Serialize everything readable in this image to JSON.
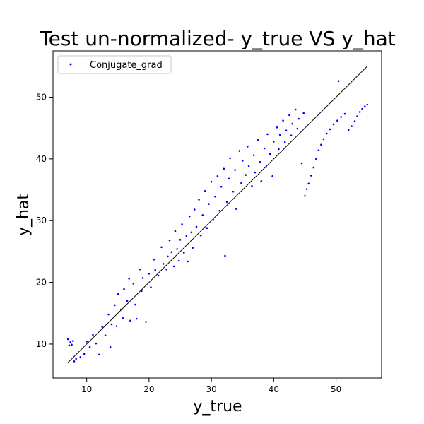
{
  "chart_data": {
    "type": "scatter",
    "title": "Test un-normalized- y_true VS y_hat",
    "xlabel": "y_true",
    "ylabel": "y_hat",
    "xlim": [
      4.6,
      57.3
    ],
    "ylim": [
      4.5,
      57.5
    ],
    "xticks": [
      "10",
      "20",
      "30",
      "40",
      "50"
    ],
    "yticks": [
      "10",
      "20",
      "30",
      "40",
      "50"
    ],
    "grid": false,
    "legend_position": "upper-left",
    "series": [
      {
        "name": "Conjugate_grad",
        "color": "#0000ff",
        "marker": "dot",
        "points": [
          [
            7.0,
            10.8
          ],
          [
            7.2,
            9.8
          ],
          [
            7.4,
            10.3
          ],
          [
            7.6,
            9.9
          ],
          [
            7.8,
            10.5
          ],
          [
            8.0,
            7.2
          ],
          [
            8.3,
            7.6
          ],
          [
            9.0,
            7.9
          ],
          [
            9.6,
            8.4
          ],
          [
            10.0,
            10.4
          ],
          [
            10.5,
            9.5
          ],
          [
            11.0,
            11.5
          ],
          [
            11.5,
            10.1
          ],
          [
            12.0,
            8.3
          ],
          [
            12.5,
            12.8
          ],
          [
            13.0,
            11.4
          ],
          [
            13.5,
            14.8
          ],
          [
            13.8,
            9.5
          ],
          [
            14.0,
            13.2
          ],
          [
            14.5,
            16.3
          ],
          [
            14.8,
            12.9
          ],
          [
            15.0,
            18.1
          ],
          [
            15.5,
            15.6
          ],
          [
            15.8,
            14.2
          ],
          [
            16.0,
            18.9
          ],
          [
            16.5,
            17.0
          ],
          [
            16.8,
            20.6
          ],
          [
            17.0,
            13.8
          ],
          [
            17.5,
            19.8
          ],
          [
            17.8,
            16.4
          ],
          [
            18.0,
            14.1
          ],
          [
            18.5,
            22.1
          ],
          [
            18.8,
            18.6
          ],
          [
            19.0,
            20.7
          ],
          [
            19.5,
            13.6
          ],
          [
            20.0,
            21.4
          ],
          [
            20.3,
            19.2
          ],
          [
            20.8,
            23.7
          ],
          [
            21.0,
            22.0
          ],
          [
            21.5,
            21.1
          ],
          [
            22.0,
            25.7
          ],
          [
            22.3,
            23.0
          ],
          [
            22.8,
            22.1
          ],
          [
            23.0,
            24.2
          ],
          [
            23.3,
            26.8
          ],
          [
            23.6,
            24.9
          ],
          [
            24.0,
            22.6
          ],
          [
            24.2,
            28.3
          ],
          [
            24.5,
            25.4
          ],
          [
            24.8,
            23.5
          ],
          [
            25.0,
            26.9
          ],
          [
            25.3,
            29.4
          ],
          [
            25.6,
            24.8
          ],
          [
            26.0,
            27.5
          ],
          [
            26.2,
            23.4
          ],
          [
            26.5,
            30.7
          ],
          [
            26.8,
            28.1
          ],
          [
            27.0,
            25.6
          ],
          [
            27.3,
            31.8
          ],
          [
            27.6,
            29.0
          ],
          [
            28.0,
            33.4
          ],
          [
            28.3,
            27.6
          ],
          [
            28.6,
            30.9
          ],
          [
            29.0,
            34.8
          ],
          [
            29.3,
            28.8
          ],
          [
            29.6,
            32.7
          ],
          [
            30.0,
            36.3
          ],
          [
            30.3,
            30.1
          ],
          [
            30.6,
            33.9
          ],
          [
            31.0,
            37.2
          ],
          [
            31.3,
            31.6
          ],
          [
            31.6,
            35.5
          ],
          [
            32.0,
            38.4
          ],
          [
            32.2,
            24.3
          ],
          [
            32.5,
            33.0
          ],
          [
            32.8,
            36.8
          ],
          [
            33.0,
            40.1
          ],
          [
            33.5,
            34.7
          ],
          [
            33.8,
            38.2
          ],
          [
            34.0,
            31.9
          ],
          [
            34.5,
            41.3
          ],
          [
            34.8,
            36.1
          ],
          [
            35.0,
            39.7
          ],
          [
            35.5,
            37.4
          ],
          [
            35.8,
            42.0
          ],
          [
            36.0,
            38.8
          ],
          [
            36.5,
            35.6
          ],
          [
            36.8,
            40.6
          ],
          [
            37.0,
            37.8
          ],
          [
            37.5,
            43.1
          ],
          [
            37.8,
            39.5
          ],
          [
            38.0,
            36.4
          ],
          [
            38.5,
            41.7
          ],
          [
            38.8,
            38.7
          ],
          [
            39.0,
            44.0
          ],
          [
            39.4,
            40.8
          ],
          [
            39.8,
            37.2
          ],
          [
            40.0,
            42.8
          ],
          [
            40.5,
            45.1
          ],
          [
            40.8,
            41.6
          ],
          [
            41.0,
            43.9
          ],
          [
            41.5,
            46.2
          ],
          [
            41.8,
            42.7
          ],
          [
            42.0,
            44.6
          ],
          [
            42.5,
            47.1
          ],
          [
            42.8,
            43.8
          ],
          [
            43.0,
            45.7
          ],
          [
            43.5,
            48.0
          ],
          [
            43.8,
            44.9
          ],
          [
            44.0,
            46.5
          ],
          [
            44.5,
            39.3
          ],
          [
            44.8,
            47.4
          ],
          [
            45.0,
            34.0
          ],
          [
            45.3,
            35.1
          ],
          [
            45.6,
            36.0
          ],
          [
            46.0,
            37.3
          ],
          [
            46.4,
            38.6
          ],
          [
            46.8,
            40.0
          ],
          [
            47.2,
            41.4
          ],
          [
            47.6,
            42.3
          ],
          [
            48.0,
            43.2
          ],
          [
            48.5,
            44.1
          ],
          [
            49.0,
            44.8
          ],
          [
            49.6,
            45.6
          ],
          [
            50.2,
            46.2
          ],
          [
            50.4,
            52.6
          ],
          [
            50.8,
            46.8
          ],
          [
            51.4,
            47.3
          ],
          [
            52.0,
            44.7
          ],
          [
            52.5,
            45.3
          ],
          [
            53.0,
            46.1
          ],
          [
            53.4,
            46.9
          ],
          [
            53.8,
            47.6
          ],
          [
            54.2,
            48.1
          ],
          [
            54.6,
            48.5
          ],
          [
            55.0,
            48.8
          ]
        ]
      },
      {
        "name": "",
        "color": "#000000",
        "marker": "line",
        "points": [
          [
            7.0,
            7.0
          ],
          [
            55.0,
            55.0
          ]
        ]
      }
    ]
  }
}
